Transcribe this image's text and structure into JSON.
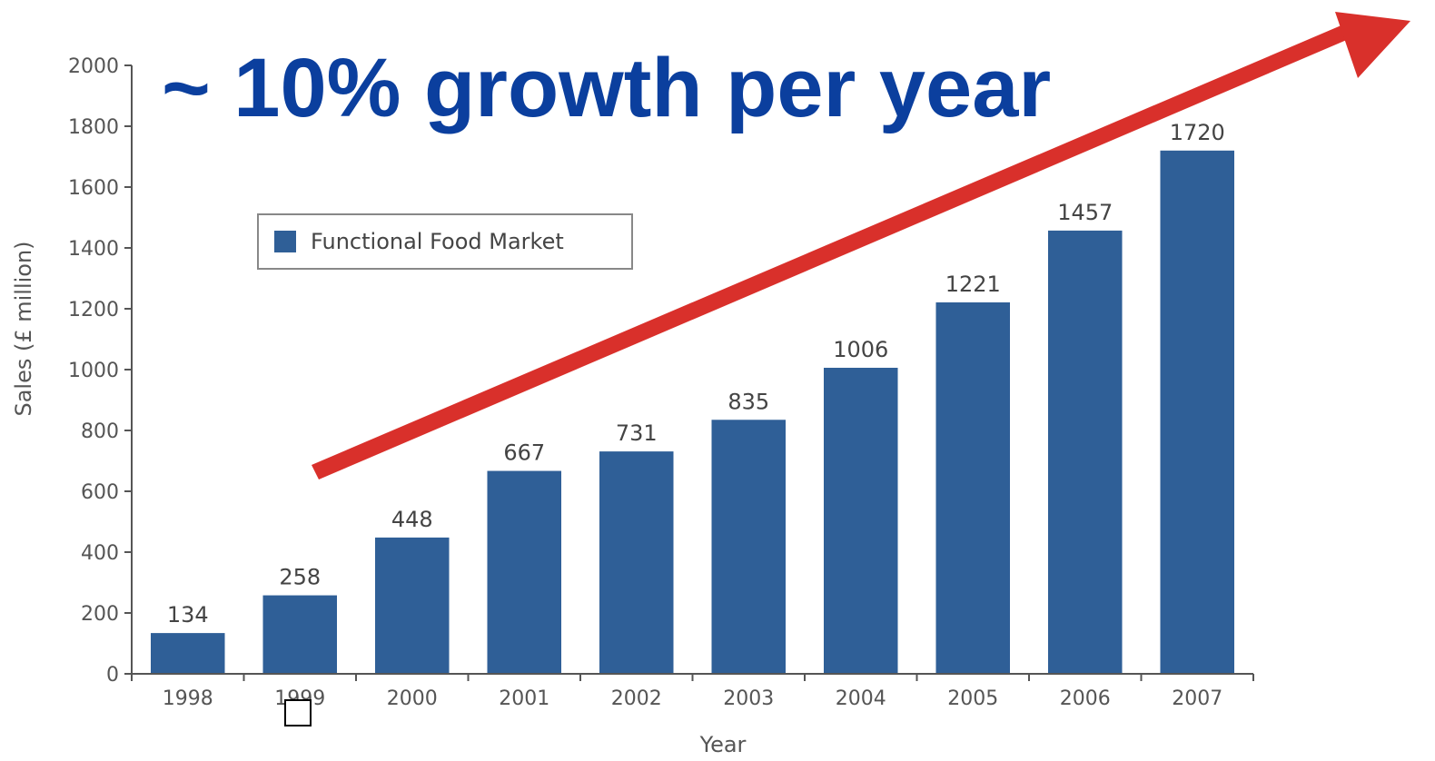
{
  "headline": "~ 10% growth per year",
  "chart_data": {
    "type": "bar",
    "categories": [
      "1998",
      "1999",
      "2000",
      "2001",
      "2002",
      "2003",
      "2004",
      "2005",
      "2006",
      "2007"
    ],
    "series": [
      {
        "name": "Functional Food Market",
        "values": [
          134,
          258,
          448,
          667,
          731,
          835,
          1006,
          1221,
          1457,
          1720
        ],
        "color": "#2f5f97"
      }
    ],
    "xlabel": "Year",
    "ylabel": "Sales (£ million)",
    "ylim": [
      0,
      2000
    ],
    "yticks": [
      0,
      200,
      400,
      600,
      800,
      1000,
      1200,
      1400,
      1600,
      1800,
      2000
    ],
    "grid": false,
    "legend_position": "upper-left",
    "annotation": {
      "type": "arrow",
      "color": "#d9302b",
      "direction": "up-right"
    }
  }
}
